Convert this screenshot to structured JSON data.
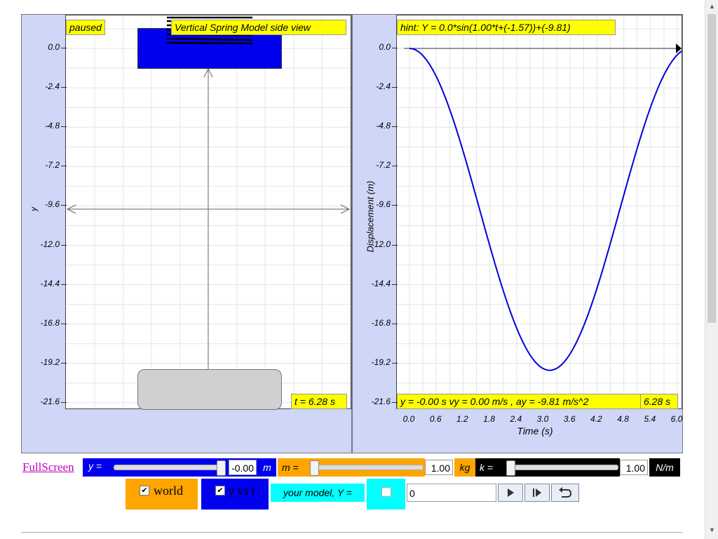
{
  "left_view": {
    "status": "paused",
    "title": "Vertical Spring Model side view",
    "time_label": "t = 6.28 s",
    "y_axis_label": "y",
    "y_ticks": [
      "0.0",
      "-2.4",
      "-4.8",
      "-7.2",
      "-9.6",
      "-12.0",
      "-14.4",
      "-16.8",
      "-19.2",
      "-21.6"
    ]
  },
  "right_view": {
    "hint": "hint: Y = 0.0*sin(1.00*t+(-1.57))+(-9.81)",
    "readout": "y = -0.00 s vy = 0.00 m/s , ay = -9.81 m/s^2",
    "time_readout": "6.28 s",
    "y_axis_label": "Displacement (m)",
    "x_axis_label": "Time (s)",
    "y_ticks": [
      "0.0",
      "-2.4",
      "-4.8",
      "-7.2",
      "-9.6",
      "-12.0",
      "-14.4",
      "-16.8",
      "-19.2",
      "-21.6"
    ],
    "x_ticks": [
      "0.0",
      "0.6",
      "1.2",
      "1.8",
      "2.4",
      "3.0",
      "3.6",
      "4.2",
      "4.8",
      "5.4",
      "6.0"
    ]
  },
  "controls": {
    "fullscreen": "FullScreen",
    "y_label": "y =",
    "y_value": "-0.00",
    "y_unit": "m",
    "y_slider_fraction": 1.0,
    "m_label": "m =",
    "m_value": "1.00",
    "m_unit": "kg",
    "m_slider_fraction": 0.0,
    "k_label": "k =",
    "k_value": "1.00",
    "k_unit": "N/m",
    "k_slider_fraction": 0.0,
    "world_label": "world",
    "world_checked": true,
    "yvst_label": "y vs t",
    "yvst_checked": true,
    "model_label": "your model, Y =",
    "model_checked": false,
    "model_input": "0"
  },
  "colors": {
    "panel_bg": "#d0d6f8",
    "tag_bg": "#ffff00",
    "curve": "#0000dd",
    "mass_block": "#0000ee",
    "y_control": "#0000ee",
    "m_control": "#ffa500",
    "k_control": "#000000",
    "model_control": "#00ffff"
  }
}
